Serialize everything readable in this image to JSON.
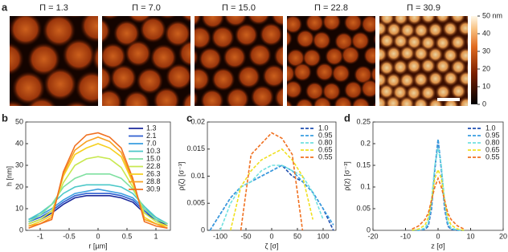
{
  "figure": {
    "panel_labels": [
      "a",
      "b",
      "c",
      "d"
    ],
    "image_titles": [
      "Π = 1.3",
      "Π = 7.0",
      "Π = 15.0",
      "Π = 22.8",
      "Π = 30.9"
    ],
    "colorbar": {
      "ylim": [
        0,
        50
      ],
      "yticks": [
        0,
        10,
        20,
        30,
        40,
        {
          "value": 50,
          "label": "50 nm"
        }
      ]
    }
  },
  "chart_data": [
    {
      "type": "line",
      "xlabel": "r [µm]",
      "ylabel": "h [nm]",
      "legend": "upper right",
      "linestyle": "solid",
      "xlim": [
        -1.25,
        1.25
      ],
      "xticks": [
        -1,
        -0.5,
        0,
        0.5,
        1
      ],
      "ylim": [
        0,
        50
      ],
      "yticks": [
        0,
        10,
        20,
        30,
        40,
        50
      ],
      "x": [
        -1.2,
        -1.0,
        -0.8,
        -0.6,
        -0.4,
        -0.2,
        0,
        0.2,
        0.4,
        0.6,
        0.8,
        1.0,
        1.2
      ],
      "series": [
        {
          "name": "1.3",
          "color": "#1c2a9c",
          "values": [
            3,
            5,
            8,
            12,
            15,
            16,
            16,
            16,
            15,
            13,
            8,
            5,
            2
          ]
        },
        {
          "name": "2.1",
          "color": "#2f5fd0",
          "values": [
            4,
            6,
            9,
            13,
            16,
            17,
            17,
            17,
            16,
            14,
            9,
            5,
            3
          ]
        },
        {
          "name": "7.0",
          "color": "#3a9ee0",
          "values": [
            5,
            7,
            10,
            14,
            17,
            18,
            19,
            18,
            17,
            15,
            10,
            6,
            3
          ]
        },
        {
          "name": "10.3",
          "color": "#4cc8c8",
          "values": [
            5,
            8,
            12,
            17,
            20,
            21,
            21,
            21,
            20,
            17,
            11,
            6,
            3
          ]
        },
        {
          "name": "15.0",
          "color": "#7fe0a0",
          "values": [
            4,
            7,
            12,
            20,
            24,
            26,
            26,
            26,
            24,
            19,
            10,
            5,
            3
          ]
        },
        {
          "name": "22.8",
          "color": "#c8e850",
          "values": [
            3,
            5,
            9,
            22,
            30,
            33,
            34,
            33,
            29,
            20,
            8,
            4,
            2
          ]
        },
        {
          "name": "26.3",
          "color": "#f5d020",
          "values": [
            2,
            4,
            7,
            25,
            35,
            38,
            40,
            38,
            34,
            22,
            6,
            3,
            2
          ]
        },
        {
          "name": "28.8",
          "color": "#f8a020",
          "values": [
            2,
            3,
            6,
            26,
            37,
            41,
            43,
            41,
            36,
            23,
            5,
            3,
            1
          ]
        },
        {
          "name": "30.9",
          "color": "#f07020",
          "values": [
            1,
            3,
            5,
            27,
            39,
            44,
            45,
            43,
            38,
            24,
            4,
            2,
            1
          ]
        }
      ]
    },
    {
      "type": "line",
      "xlabel": "ζ [σ]",
      "ylabel": "ρ(ζ) [σ⁻³]",
      "legend": "upper right",
      "linestyle": "dashed",
      "xlim": [
        -125,
        125
      ],
      "xticks": [
        -100,
        -50,
        0,
        50,
        100
      ],
      "ylim": [
        0,
        0.02
      ],
      "yticks": [
        0,
        0.005,
        0.01,
        0.015,
        0.02
      ],
      "x": [
        -120,
        -100,
        -80,
        -60,
        -40,
        -20,
        0,
        20,
        40,
        60,
        80,
        100,
        120
      ],
      "series": [
        {
          "name": "1.0",
          "color": "#1f4fb0",
          "values": [
            0,
            0.003,
            0.006,
            0.008,
            0.009,
            0.01,
            0.011,
            0.012,
            0.01,
            0.009,
            0.007,
            0.004,
            0
          ]
        },
        {
          "name": "0.95",
          "color": "#3a9ee0",
          "values": [
            0,
            0.003,
            0.006,
            0.008,
            0.009,
            0.01,
            0.011,
            0.012,
            0.011,
            0.009,
            0.007,
            0.004,
            0.001
          ]
        },
        {
          "name": "0.80",
          "color": "#70e0e0",
          "values": [
            null,
            0,
            0.005,
            0.008,
            0.009,
            0.011,
            0.012,
            0.012,
            0.011,
            0.01,
            0.007,
            0.002,
            null
          ]
        },
        {
          "name": "0.65",
          "color": "#f0e020",
          "values": [
            null,
            null,
            0,
            0.008,
            0.011,
            0.013,
            0.014,
            0.015,
            0.013,
            0.01,
            0.002,
            null,
            null
          ]
        },
        {
          "name": "0.55",
          "color": "#f07020",
          "values": [
            null,
            null,
            null,
            0,
            0.014,
            0.016,
            0.018,
            0.017,
            0.014,
            0,
            null,
            null,
            null
          ]
        }
      ]
    },
    {
      "type": "line",
      "xlabel": "z [σ]",
      "ylabel": "ρ(z) [σ⁻³]",
      "legend": "upper right",
      "linestyle": "dashed",
      "xlim": [
        -20,
        20
      ],
      "xticks": [
        -20,
        -10,
        0,
        10,
        20
      ],
      "ylim": [
        0,
        0.25
      ],
      "yticks": [
        0,
        0.05,
        0.1,
        0.15,
        0.2,
        0.25
      ],
      "x": [
        -8,
        -6,
        -4,
        -3,
        -2,
        -1,
        0,
        1,
        2,
        3,
        4,
        6,
        8
      ],
      "series": [
        {
          "name": "1.0",
          "color": "#1f4fb0",
          "values": [
            0,
            0,
            0.002,
            0.01,
            0.05,
            0.14,
            0.21,
            0.14,
            0.05,
            0.01,
            0.002,
            0,
            0
          ]
        },
        {
          "name": "0.95",
          "color": "#3a9ee0",
          "values": [
            0,
            0,
            0.003,
            0.012,
            0.055,
            0.145,
            0.21,
            0.145,
            0.055,
            0.012,
            0.003,
            0,
            0
          ]
        },
        {
          "name": "0.80",
          "color": "#70e0e0",
          "values": [
            0,
            0.001,
            0.005,
            0.02,
            0.07,
            0.15,
            0.19,
            0.15,
            0.07,
            0.02,
            0.005,
            0.001,
            0
          ]
        },
        {
          "name": "0.65",
          "color": "#f0e020",
          "values": [
            0,
            0.003,
            0.012,
            0.03,
            0.07,
            0.12,
            0.14,
            0.12,
            0.07,
            0.03,
            0.012,
            0.003,
            0
          ]
        },
        {
          "name": "0.55",
          "color": "#f07020",
          "values": [
            0.003,
            0.01,
            0.025,
            0.04,
            0.07,
            0.1,
            0.12,
            0.1,
            0.07,
            0.04,
            0.025,
            0.01,
            0.003
          ]
        }
      ]
    }
  ]
}
